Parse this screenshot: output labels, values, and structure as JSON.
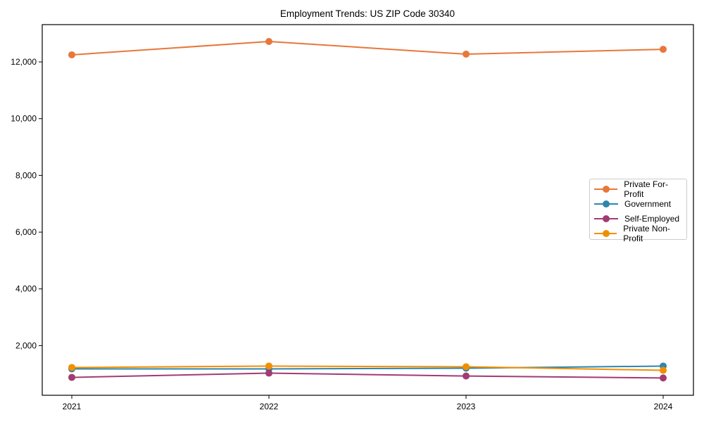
{
  "chart_data": {
    "type": "line",
    "title": "Employment Trends: US ZIP Code 30340",
    "xlabel": "",
    "ylabel": "",
    "categories": [
      "2021",
      "2022",
      "2023",
      "2024"
    ],
    "yticks": [
      2000,
      4000,
      6000,
      8000,
      10000,
      12000
    ],
    "ytick_labels": [
      "2,000",
      "4,000",
      "6,000",
      "8,000",
      "10,000",
      "12,000"
    ],
    "ylim": [
      250,
      13315
    ],
    "grid": false,
    "legend_position": "center right",
    "series": [
      {
        "name": "Private For-Profit",
        "color": "#E8773A",
        "values": [
          12250,
          12720,
          12275,
          12445
        ]
      },
      {
        "name": "Government",
        "color": "#2E86AB",
        "values": [
          1180,
          1180,
          1205,
          1280
        ]
      },
      {
        "name": "Self-Employed",
        "color": "#A23B72",
        "values": [
          880,
          1030,
          930,
          860
        ]
      },
      {
        "name": "Private Non-Profit",
        "color": "#F18F01",
        "values": [
          1230,
          1280,
          1255,
          1130
        ]
      }
    ]
  }
}
